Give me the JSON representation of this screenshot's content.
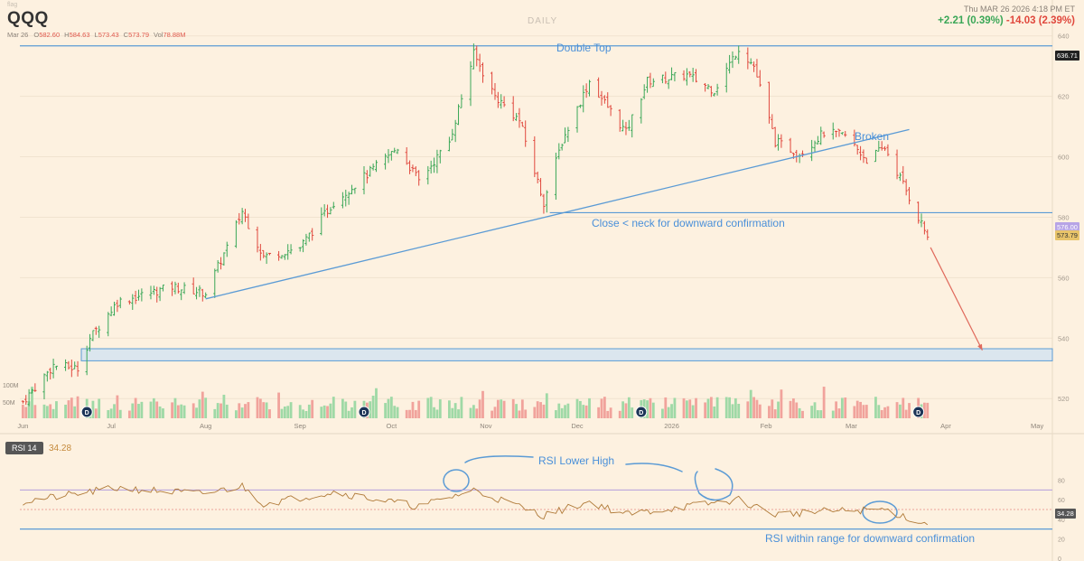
{
  "header": {
    "logo": "flag",
    "symbol": "QQQ",
    "bar_date": "Mar 26",
    "ohlc": [
      {
        "k": "O",
        "v": "582.60"
      },
      {
        "k": "H",
        "v": "584.63"
      },
      {
        "k": "L",
        "v": "573.43"
      },
      {
        "k": "C",
        "v": "573.79"
      },
      {
        "k": "Vol",
        "v": "78.88M"
      }
    ],
    "period": "DAILY",
    "datetime": "Thu MAR 26 2026 4:18 PM ET",
    "change_abs": "+2.21 (0.39%)",
    "change_pct": "-14.03 (2.39%)",
    "colors": {
      "up": "#3aa757",
      "down": "#e0483d",
      "line": "#5b9bd5",
      "accent": "#c58a3c"
    }
  },
  "rsi": {
    "label": "RSI 14",
    "value": "34.28"
  },
  "annotations": {
    "double_top": "Double Top",
    "broken": "Broken",
    "neckline": "Close < neck for downward confirmation",
    "rsi_lower_high": "RSI Lower High",
    "rsi_range": "RSI within range for downward confirmation"
  },
  "price_tags": {
    "top": "636.71",
    "prev": "576.00",
    "last": "573.79",
    "rsi_last": "34.28"
  },
  "dividend_marker": "D",
  "chart_data": {
    "type": "candlestick",
    "x_ticks": [
      "Jun",
      "Jul",
      "Aug",
      "Sep",
      "Oct",
      "Nov",
      "Dec",
      "2026",
      "Feb",
      "Mar",
      "Apr",
      "May"
    ],
    "y_ticks": [
      520,
      540,
      560,
      580,
      600,
      620,
      640
    ],
    "ylim": [
      512,
      642
    ],
    "volume_ticks": [
      "50M",
      "100M"
    ],
    "rsi_ticks": [
      0,
      20,
      40,
      60,
      80
    ],
    "rsi_ylim": [
      0,
      100
    ],
    "levels": {
      "double_top": 636.7,
      "neckline": 581.5,
      "target_zone": [
        532.5,
        536.5
      ],
      "rsi_lower_band": 30,
      "rsi_upper_band": 70,
      "rsi_mid": 50
    },
    "trendline": [
      [
        "2025-08-01",
        553
      ],
      [
        "2026-03-20",
        609
      ]
    ],
    "projection": [
      [
        "2026-03-27",
        570
      ],
      [
        "2026-04-13",
        536
      ]
    ],
    "dividend_dates": [
      "2025-06-23",
      "2025-09-22",
      "2025-12-22",
      "2026-03-23"
    ],
    "price_path": [
      [
        "2025-06-02",
        519
      ],
      [
        "2025-06-12",
        531
      ],
      [
        "2025-06-20",
        530
      ],
      [
        "2025-06-24",
        540
      ],
      [
        "2025-07-03",
        552
      ],
      [
        "2025-07-21",
        557
      ],
      [
        "2025-08-01",
        555
      ],
      [
        "2025-08-08",
        570
      ],
      [
        "2025-08-13",
        582
      ],
      [
        "2025-08-20",
        567
      ],
      [
        "2025-09-01",
        570
      ],
      [
        "2025-09-12",
        585
      ],
      [
        "2025-09-24",
        595
      ],
      [
        "2025-10-03",
        603
      ],
      [
        "2025-10-10",
        592
      ],
      [
        "2025-10-20",
        605
      ],
      [
        "2025-10-28",
        634
      ],
      [
        "2025-11-04",
        620
      ],
      [
        "2025-11-12",
        612
      ],
      [
        "2025-11-20",
        585
      ],
      [
        "2025-11-26",
        605
      ],
      [
        "2025-12-05",
        625
      ],
      [
        "2025-12-17",
        608
      ],
      [
        "2025-12-24",
        625
      ],
      [
        "2026-01-06",
        627
      ],
      [
        "2026-01-15",
        622
      ],
      [
        "2026-01-23",
        636
      ],
      [
        "2026-01-28",
        630
      ],
      [
        "2026-02-04",
        605
      ],
      [
        "2026-02-12",
        601
      ],
      [
        "2026-02-20",
        608
      ],
      [
        "2026-02-27",
        607
      ],
      [
        "2026-03-06",
        599
      ],
      [
        "2026-03-12",
        603
      ],
      [
        "2026-03-18",
        591
      ],
      [
        "2026-03-23",
        580
      ],
      [
        "2026-03-26",
        573.8
      ]
    ],
    "rsi_path": [
      [
        "2025-06-02",
        58
      ],
      [
        "2025-07-03",
        72
      ],
      [
        "2025-07-31",
        66
      ],
      [
        "2025-08-13",
        74
      ],
      [
        "2025-08-20",
        56
      ],
      [
        "2025-09-12",
        68
      ],
      [
        "2025-10-10",
        53
      ],
      [
        "2025-10-28",
        70
      ],
      [
        "2025-11-20",
        44
      ],
      [
        "2025-12-05",
        58
      ],
      [
        "2025-12-17",
        45
      ],
      [
        "2026-01-23",
        60
      ],
      [
        "2026-02-04",
        45
      ],
      [
        "2026-02-20",
        48
      ],
      [
        "2026-03-12",
        50
      ],
      [
        "2026-03-26",
        34.3
      ]
    ]
  }
}
